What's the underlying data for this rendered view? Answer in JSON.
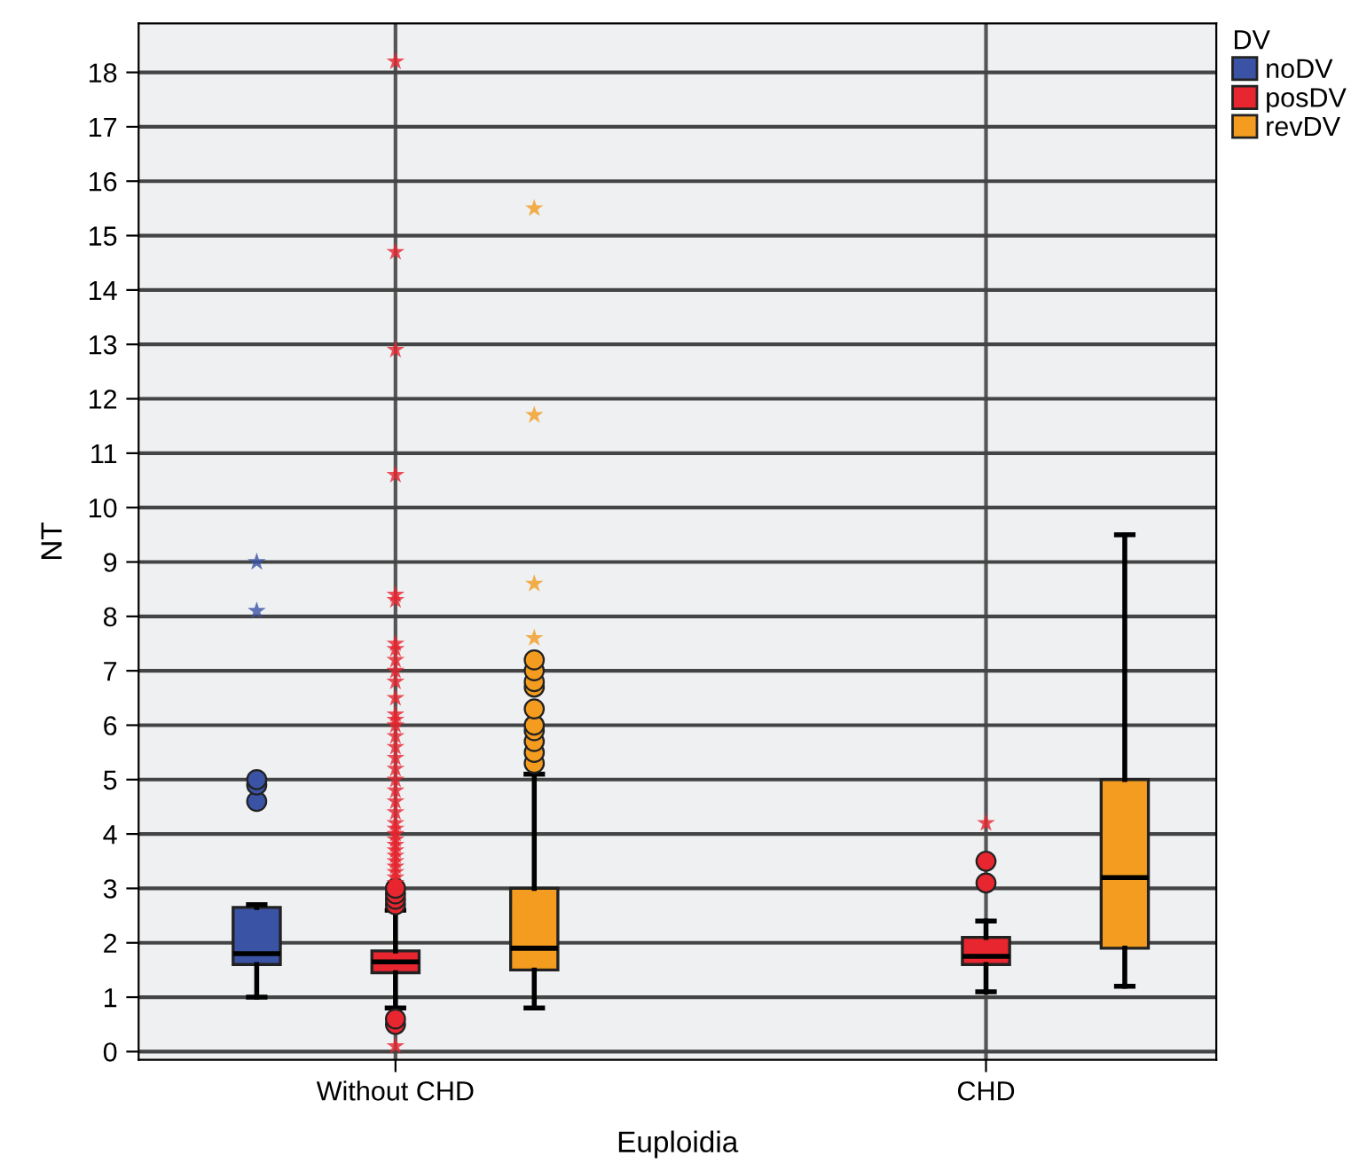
{
  "chart_data": {
    "type": "box",
    "xlabel": "Euploidia",
    "ylabel": "NT",
    "legend_title": "DV",
    "legend": "top right",
    "grid": true,
    "categories": [
      "Without CHD",
      "CHD"
    ],
    "ylim": [
      -0.15,
      18.9
    ],
    "yticks": [
      0,
      1,
      2,
      3,
      4,
      5,
      6,
      7,
      8,
      9,
      10,
      11,
      12,
      13,
      14,
      15,
      16,
      17,
      18
    ],
    "series": [
      {
        "name": "noDV",
        "color": "#3a53a4",
        "boxes": [
          {
            "low": 1.0,
            "q1": 1.6,
            "median": 1.8,
            "q3": 2.65,
            "high": 2.7,
            "outliers": [
              4.6,
              4.9,
              5.0,
              8.1,
              9.0
            ]
          },
          null
        ]
      },
      {
        "name": "posDV",
        "color": "#e8262f",
        "boxes": [
          {
            "low": 0.8,
            "q1": 1.45,
            "median": 1.65,
            "q3": 1.85,
            "high": 2.6,
            "outliers": [
              0.1,
              0.5,
              0.6,
              2.7,
              2.8,
              2.9,
              3.0,
              3.1,
              3.2,
              3.3,
              3.4,
              3.5,
              3.6,
              3.7,
              3.8,
              3.9,
              4.0,
              4.1,
              4.2,
              4.4,
              4.6,
              4.8,
              5.0,
              5.2,
              5.4,
              5.6,
              5.8,
              6.0,
              6.1,
              6.2,
              6.5,
              6.8,
              7.0,
              7.2,
              7.4,
              7.5,
              8.3,
              8.4,
              10.6,
              12.9,
              14.7,
              18.2
            ]
          },
          {
            "low": 1.1,
            "q1": 1.6,
            "median": 1.75,
            "q3": 2.1,
            "high": 2.4,
            "outliers": [
              3.1,
              3.5,
              4.2
            ]
          }
        ]
      },
      {
        "name": "revDV",
        "color": "#f39c1f",
        "boxes": [
          {
            "low": 0.8,
            "q1": 1.5,
            "median": 1.9,
            "q3": 3.0,
            "high": 5.1,
            "outliers": [
              5.3,
              5.5,
              5.7,
              5.9,
              6.0,
              6.3,
              6.7,
              6.8,
              7.0,
              7.2,
              7.6,
              8.6,
              11.7,
              15.5
            ]
          },
          {
            "low": 1.2,
            "q1": 1.9,
            "median": 3.2,
            "q3": 5.0,
            "high": 9.5
          }
        ]
      }
    ]
  }
}
